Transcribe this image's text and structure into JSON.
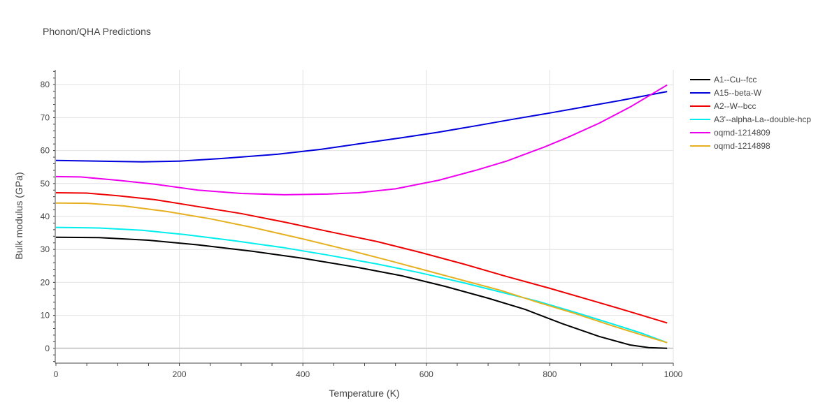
{
  "chart_data": {
    "type": "line",
    "title": "Phonon/QHA Predictions",
    "xlabel": "Temperature (K)",
    "ylabel": "Bulk modulus (GPa)",
    "xlim": [
      0,
      1000
    ],
    "ylim": [
      -4.5,
      84.5
    ],
    "x_ticks": [
      0,
      200,
      400,
      600,
      800,
      1000
    ],
    "x_tick_labels": [
      "0",
      "200",
      "400",
      "600",
      "800",
      "1000"
    ],
    "y_ticks": [
      0,
      10,
      20,
      30,
      40,
      50,
      60,
      70,
      80
    ],
    "y_tick_labels": [
      "0",
      "10",
      "20",
      "30",
      "40",
      "50",
      "60",
      "70",
      "80"
    ],
    "grid": true,
    "legend_position": "top-right",
    "series": [
      {
        "name": "A1--Cu--fcc",
        "color": "#000000",
        "points": [
          [
            0,
            33.7
          ],
          [
            70,
            33.6
          ],
          [
            150,
            32.8
          ],
          [
            230,
            31.4
          ],
          [
            320,
            29.4
          ],
          [
            400,
            27.3
          ],
          [
            490,
            24.5
          ],
          [
            560,
            22.0
          ],
          [
            630,
            18.8
          ],
          [
            700,
            15.2
          ],
          [
            760,
            11.8
          ],
          [
            820,
            7.5
          ],
          [
            880,
            3.6
          ],
          [
            930,
            1.0
          ],
          [
            960,
            0.2
          ],
          [
            990,
            0.0
          ]
        ]
      },
      {
        "name": "A15--beta-W",
        "color": "#0000dd",
        "points": [
          [
            0,
            57.0
          ],
          [
            70,
            56.8
          ],
          [
            140,
            56.6
          ],
          [
            200,
            56.8
          ],
          [
            270,
            57.6
          ],
          [
            360,
            58.9
          ],
          [
            430,
            60.4
          ],
          [
            500,
            62.3
          ],
          [
            560,
            63.9
          ],
          [
            620,
            65.6
          ],
          [
            680,
            67.5
          ],
          [
            740,
            69.5
          ],
          [
            800,
            71.4
          ],
          [
            860,
            73.4
          ],
          [
            920,
            75.4
          ],
          [
            990,
            77.9
          ]
        ]
      },
      {
        "name": "A2--W--bcc",
        "color": "#ee0000",
        "points": [
          [
            0,
            47.2
          ],
          [
            50,
            47.1
          ],
          [
            100,
            46.3
          ],
          [
            160,
            45.1
          ],
          [
            230,
            43.0
          ],
          [
            300,
            40.9
          ],
          [
            370,
            38.3
          ],
          [
            440,
            35.5
          ],
          [
            520,
            32.4
          ],
          [
            590,
            29.1
          ],
          [
            660,
            25.6
          ],
          [
            730,
            21.8
          ],
          [
            800,
            18.2
          ],
          [
            870,
            14.4
          ],
          [
            930,
            11.1
          ],
          [
            990,
            7.7
          ]
        ]
      },
      {
        "name": "A3'--alpha-La--double-hcp",
        "color": "#00eeee",
        "points": [
          [
            0,
            36.7
          ],
          [
            70,
            36.5
          ],
          [
            140,
            35.8
          ],
          [
            210,
            34.5
          ],
          [
            290,
            32.6
          ],
          [
            370,
            30.5
          ],
          [
            440,
            28.3
          ],
          [
            520,
            25.6
          ],
          [
            590,
            22.9
          ],
          [
            660,
            19.9
          ],
          [
            720,
            17.1
          ],
          [
            780,
            14.3
          ],
          [
            840,
            11.0
          ],
          [
            900,
            7.5
          ],
          [
            950,
            4.5
          ],
          [
            990,
            1.7
          ]
        ]
      },
      {
        "name": "oqmd-1214809",
        "color": "#ee00ee",
        "points": [
          [
            0,
            52.1
          ],
          [
            40,
            52.0
          ],
          [
            100,
            51.0
          ],
          [
            160,
            49.8
          ],
          [
            230,
            48.0
          ],
          [
            300,
            47.0
          ],
          [
            370,
            46.6
          ],
          [
            440,
            46.8
          ],
          [
            490,
            47.2
          ],
          [
            550,
            48.4
          ],
          [
            620,
            51.0
          ],
          [
            680,
            54.0
          ],
          [
            730,
            56.8
          ],
          [
            790,
            61.0
          ],
          [
            830,
            64.1
          ],
          [
            880,
            68.3
          ],
          [
            930,
            73.2
          ],
          [
            990,
            79.9
          ]
        ]
      },
      {
        "name": "oqmd-1214898",
        "color": "#e6b020",
        "points": [
          [
            0,
            44.1
          ],
          [
            50,
            44.0
          ],
          [
            110,
            43.2
          ],
          [
            180,
            41.5
          ],
          [
            250,
            39.3
          ],
          [
            320,
            36.6
          ],
          [
            400,
            33.2
          ],
          [
            470,
            30.0
          ],
          [
            540,
            26.6
          ],
          [
            600,
            23.6
          ],
          [
            660,
            20.6
          ],
          [
            720,
            17.6
          ],
          [
            780,
            14.0
          ],
          [
            840,
            10.6
          ],
          [
            900,
            6.9
          ],
          [
            950,
            4.0
          ],
          [
            990,
            1.7
          ]
        ]
      }
    ]
  }
}
